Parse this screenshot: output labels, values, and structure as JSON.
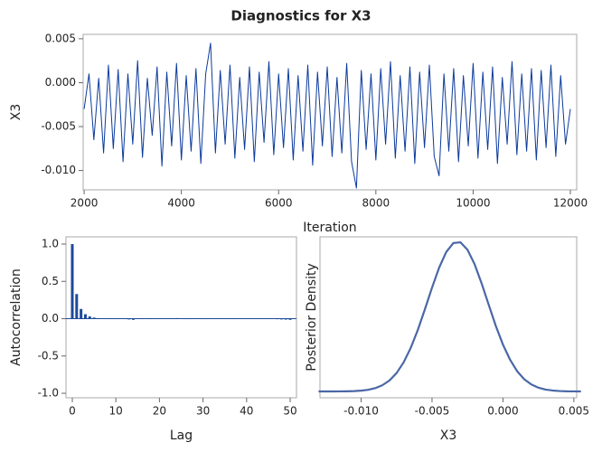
{
  "title": "Diagnostics for X3",
  "chart_data": [
    {
      "type": "line",
      "xlabel": "Iteration",
      "ylabel": "X3",
      "color": "#0b3a9c",
      "xlim": [
        1980,
        12130
      ],
      "ylim": [
        -0.0122,
        0.0055
      ],
      "xticks": [
        2000,
        4000,
        6000,
        8000,
        10000,
        12000
      ],
      "yticks": [
        0.005,
        {
          "value": 0,
          "label": "0.000"
        },
        -0.005,
        {
          "value": -0.01,
          "label": "-0.010"
        }
      ],
      "x": [
        2000,
        2100,
        2200,
        2300,
        2400,
        2500,
        2600,
        2700,
        2800,
        2900,
        3000,
        3100,
        3200,
        3300,
        3400,
        3500,
        3600,
        3700,
        3800,
        3900,
        4000,
        4100,
        4200,
        4300,
        4400,
        4500,
        4600,
        4700,
        4800,
        4900,
        5000,
        5100,
        5200,
        5300,
        5400,
        5500,
        5600,
        5700,
        5800,
        5900,
        6000,
        6100,
        6200,
        6300,
        6400,
        6500,
        6600,
        6700,
        6800,
        6900,
        7000,
        7100,
        7200,
        7300,
        7400,
        7500,
        7600,
        7700,
        7800,
        7900,
        8000,
        8100,
        8200,
        8300,
        8400,
        8500,
        8600,
        8700,
        8800,
        8900,
        9000,
        9100,
        9200,
        9300,
        9400,
        9500,
        9600,
        9700,
        9800,
        9900,
        10000,
        10100,
        10200,
        10300,
        10400,
        10500,
        10600,
        10700,
        10800,
        10900,
        11000,
        11100,
        11200,
        11300,
        11400,
        11500,
        11600,
        11700,
        11800,
        11900,
        12000
      ],
      "values": [
        -0.003,
        0.001,
        -0.0065,
        0.0005,
        -0.008,
        0.002,
        -0.0075,
        0.0015,
        -0.009,
        0.001,
        -0.007,
        0.0025,
        -0.0085,
        0.0005,
        -0.006,
        0.0018,
        -0.0095,
        0.0012,
        -0.0072,
        0.0022,
        -0.0088,
        0.0008,
        -0.0078,
        0.0016,
        -0.0092,
        0.001,
        0.0045,
        -0.008,
        0.0014,
        -0.007,
        0.002,
        -0.0086,
        0.0006,
        -0.0076,
        0.0018,
        -0.009,
        0.0012,
        -0.0068,
        0.0024,
        -0.0082,
        0.001,
        -0.0074,
        0.0016,
        -0.0088,
        0.0008,
        -0.0078,
        0.002,
        -0.0094,
        0.0012,
        -0.0072,
        0.0018,
        -0.0084,
        0.0006,
        -0.008,
        0.0022,
        -0.009,
        -0.012,
        0.0014,
        -0.0076,
        0.001,
        -0.0088,
        0.0016,
        -0.007,
        0.0024,
        -0.0086,
        0.0008,
        -0.0078,
        0.0018,
        -0.0092,
        0.0012,
        -0.0074,
        0.002,
        -0.0084,
        -0.0106,
        0.001,
        -0.0078,
        0.0016,
        -0.009,
        0.0008,
        -0.0072,
        0.0022,
        -0.0086,
        0.0012,
        -0.0076,
        0.0018,
        -0.0092,
        0.0006,
        -0.007,
        0.0024,
        -0.0082,
        0.001,
        -0.0078,
        0.0016,
        -0.0088,
        0.0014,
        -0.0074,
        0.002,
        -0.0084,
        0.0008,
        -0.007,
        -0.003
      ]
    },
    {
      "type": "bar",
      "xlabel": "Lag",
      "ylabel": "Autocorrelation",
      "color": "#1d4a9a",
      "xlim": [
        -1.45,
        51.45
      ],
      "ylim": [
        -1.06,
        1.097
      ],
      "xticks": [
        0,
        10,
        20,
        30,
        40,
        50
      ],
      "yticks": [
        {
          "value": 1,
          "label": "1.0"
        },
        0.5,
        {
          "value": 0,
          "label": "0.0"
        },
        -0.5,
        {
          "value": -1,
          "label": "-1.0"
        }
      ],
      "x": [
        0,
        1,
        2,
        3,
        4,
        5,
        6,
        7,
        8,
        9,
        10,
        11,
        12,
        13,
        14,
        15,
        16,
        17,
        18,
        19,
        20,
        21,
        22,
        23,
        24,
        25,
        26,
        27,
        28,
        29,
        30,
        31,
        32,
        33,
        34,
        35,
        36,
        37,
        38,
        39,
        40,
        41,
        42,
        43,
        44,
        45,
        46,
        47,
        48,
        49,
        50
      ],
      "values": [
        1.0,
        0.33,
        0.13,
        0.06,
        0.03,
        0.015,
        0.008,
        0.005,
        0.002,
        0.0,
        -0.003,
        0.002,
        -0.004,
        -0.01,
        -0.015,
        0.004,
        -0.002,
        0.003,
        -0.005,
        0.002,
        -0.006,
        0.004,
        -0.003,
        0.001,
        0.008,
        0.003,
        -0.004,
        -0.002,
        0.005,
        0.006,
        -0.006,
        -0.003,
        0.002,
        -0.004,
        0.003,
        0.004,
        -0.005,
        -0.002,
        0.003,
        -0.003,
        0.002,
        -0.006,
        0.004,
        -0.002,
        0.005,
        -0.003,
        0.002,
        -0.007,
        -0.01,
        -0.012,
        -0.015
      ]
    },
    {
      "type": "line",
      "xlabel": "X3",
      "ylabel": "Posterior Density",
      "color": "#4a67a6",
      "xlim": [
        -0.0129,
        0.0052
      ],
      "ylim": [
        -8,
        196
      ],
      "xticks": [
        {
          "value": -0.01,
          "label": "-0.010"
        },
        -0.005,
        {
          "value": 0,
          "label": "0.000"
        },
        0.005
      ],
      "x": [
        -0.013,
        -0.0125,
        -0.012,
        -0.0115,
        -0.011,
        -0.0105,
        -0.01,
        -0.0095,
        -0.009,
        -0.0085,
        -0.008,
        -0.0075,
        -0.007,
        -0.0065,
        -0.006,
        -0.0055,
        -0.005,
        -0.0045,
        -0.004,
        -0.0035,
        -0.003,
        -0.0025,
        -0.002,
        -0.0015,
        -0.001,
        -0.0005,
        0,
        0.0005,
        0.001,
        0.0015,
        0.002,
        0.0025,
        0.003,
        0.0035,
        0.004,
        0.0045,
        0.005,
        0.0055
      ],
      "values": [
        0,
        0,
        0.03,
        0.08,
        0.19,
        0.45,
        1.0,
        2.1,
        4.2,
        7.9,
        13.9,
        23.3,
        36.9,
        55.3,
        78.1,
        104.3,
        131.6,
        156.9,
        176.7,
        188.1,
        189.1,
        179.7,
        161.4,
        136.8,
        109.7,
        83.0,
        59.4,
        40.3,
        25.7,
        15.5,
        8.9,
        4.8,
        2.4,
        1.2,
        0.5,
        0.2,
        0.1,
        0
      ]
    }
  ]
}
